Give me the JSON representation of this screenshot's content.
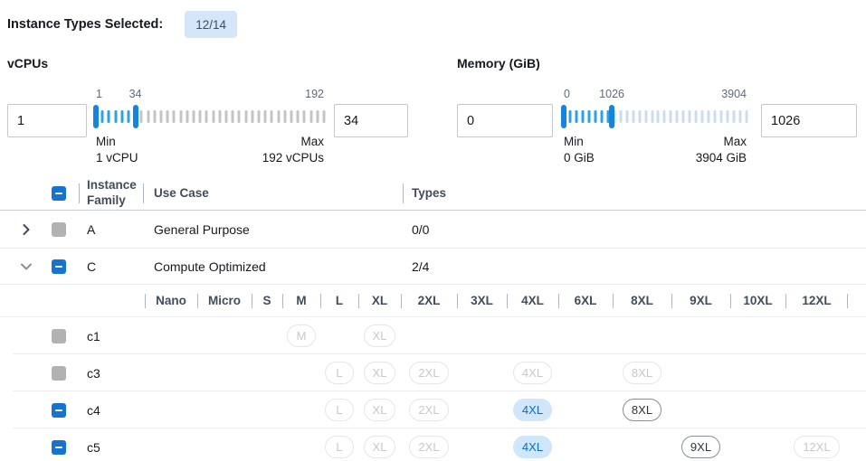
{
  "header": {
    "label": "Instance Types Selected:",
    "badge": "12/14"
  },
  "filters": {
    "vcpus": {
      "title": "vCPUs",
      "low_value": "1",
      "high_value": "34",
      "slider": {
        "min": 1,
        "max": 192,
        "low": 1,
        "high": 34,
        "min_label": "1",
        "high_label": "34",
        "max_label": "192",
        "min_caption": "Min",
        "max_caption": "Max",
        "min_sub": "1 vCPU",
        "max_sub": "192 vCPUs"
      }
    },
    "memory": {
      "title": "Memory (GiB)",
      "low_value": "0",
      "high_value": "1026",
      "slider": {
        "min": 0,
        "max": 3904,
        "low": 0,
        "high": 1026,
        "min_label": "0",
        "high_label": "1026",
        "max_label": "3904",
        "min_caption": "Min",
        "max_caption": "Max",
        "min_sub": "0 GiB",
        "max_sub": "3904 GiB"
      }
    }
  },
  "table": {
    "columns": {
      "family": "Instance Family",
      "use_case": "Use Case",
      "types": "Types"
    },
    "select_all_state": "indeterminate",
    "sizes": [
      "Nano",
      "Micro",
      "S",
      "M",
      "L",
      "XL",
      "2XL",
      "3XL",
      "4XL",
      "6XL",
      "8XL",
      "9XL",
      "10XL",
      "12XL"
    ],
    "family_rows": [
      {
        "family": "A",
        "use_case": "General Purpose",
        "types": "0/0",
        "expanded": false,
        "checkbox": "disabled",
        "children": []
      },
      {
        "family": "C",
        "use_case": "Compute Optimized",
        "types": "2/4",
        "expanded": true,
        "checkbox": "indeterminate",
        "children": [
          {
            "name": "c1",
            "checkbox": "disabled",
            "pills": {
              "M": "disabled",
              "XL": "disabled"
            }
          },
          {
            "name": "c3",
            "checkbox": "disabled",
            "pills": {
              "L": "disabled",
              "XL": "disabled",
              "2XL": "disabled",
              "4XL": "disabled",
              "8XL": "disabled"
            }
          },
          {
            "name": "c4",
            "checkbox": "indeterminate",
            "pills": {
              "L": "disabled",
              "XL": "disabled",
              "2XL": "disabled",
              "4XL": "selected",
              "8XL": "enabled"
            }
          },
          {
            "name": "c5",
            "checkbox": "indeterminate",
            "pills": {
              "L": "disabled",
              "XL": "disabled",
              "2XL": "disabled",
              "4XL": "selected",
              "9XL": "enabled",
              "12XL": "disabled"
            }
          }
        ]
      }
    ]
  },
  "colors": {
    "accent": "#1673d2",
    "slider_handle": "#1584e0",
    "tick_selected": "#2da0e8",
    "tick_unselected_gray": "#c2c4c8",
    "tick_unselected_blue": "#ccdcee",
    "badge_bg": "#d3e7f9",
    "badge_text": "#414d5c",
    "pill_selected_bg": "#cfe6fb",
    "pill_selected_text": "#0b6dc2",
    "pill_enabled_border": "#848d97",
    "pill_enabled_text": "#30363d",
    "pill_disabled_border": "#e5e6e8",
    "pill_disabled_text": "#c6c8cb",
    "checkbox_disabled": "#b0b2b4",
    "divider": "#aeb8c2",
    "header_border": "#c9ced4",
    "row_border": "#ebedef",
    "text": "#16191f",
    "muted": "#5f6b7a",
    "header_text": "#414d5c",
    "input_border": "#c6c6c6"
  }
}
